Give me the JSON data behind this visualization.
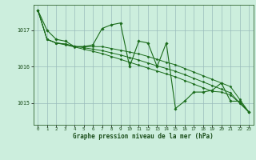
{
  "background_color": "#cceedd",
  "plot_bg_color": "#cceedd",
  "grid_color": "#99bbbb",
  "line_color": "#1a6b1a",
  "marker_color": "#1a6b1a",
  "xlabel": "Graphe pression niveau de la mer (hPa)",
  "ylim": [
    1014.4,
    1017.7
  ],
  "xlim": [
    -0.5,
    23.5
  ],
  "yticks": [
    1015,
    1016,
    1017
  ],
  "xticks": [
    0,
    1,
    2,
    3,
    4,
    5,
    6,
    7,
    8,
    9,
    10,
    11,
    12,
    13,
    14,
    15,
    16,
    17,
    18,
    19,
    20,
    21,
    22,
    23
  ],
  "series": [
    [
      1017.55,
      1017.0,
      1016.75,
      1016.7,
      1016.55,
      1016.55,
      1016.6,
      1017.05,
      1017.15,
      1017.2,
      1016.0,
      1016.7,
      1016.65,
      1016.0,
      1016.65,
      1014.85,
      1015.05,
      1015.3,
      1015.3,
      1015.35,
      1015.55,
      1015.05,
      1015.05,
      1014.75
    ],
    [
      1017.55,
      1016.75,
      1016.65,
      1016.62,
      1016.55,
      1016.55,
      1016.55,
      1016.55,
      1016.5,
      1016.45,
      1016.4,
      1016.35,
      1016.28,
      1016.2,
      1016.12,
      1016.05,
      1015.95,
      1015.85,
      1015.75,
      1015.65,
      1015.55,
      1015.45,
      1015.1,
      1014.75
    ],
    [
      1017.55,
      1016.75,
      1016.65,
      1016.62,
      1016.56,
      1016.52,
      1016.48,
      1016.44,
      1016.38,
      1016.32,
      1016.25,
      1016.18,
      1016.1,
      1016.02,
      1015.95,
      1015.87,
      1015.78,
      1015.68,
      1015.58,
      1015.48,
      1015.38,
      1015.28,
      1015.0,
      1014.75
    ],
    [
      1017.55,
      1016.75,
      1016.65,
      1016.6,
      1016.54,
      1016.48,
      1016.42,
      1016.36,
      1016.28,
      1016.2,
      1016.12,
      1016.04,
      1015.96,
      1015.88,
      1015.8,
      1015.72,
      1015.62,
      1015.52,
      1015.42,
      1015.32,
      1015.3,
      1015.22,
      1015.0,
      1014.75
    ]
  ]
}
